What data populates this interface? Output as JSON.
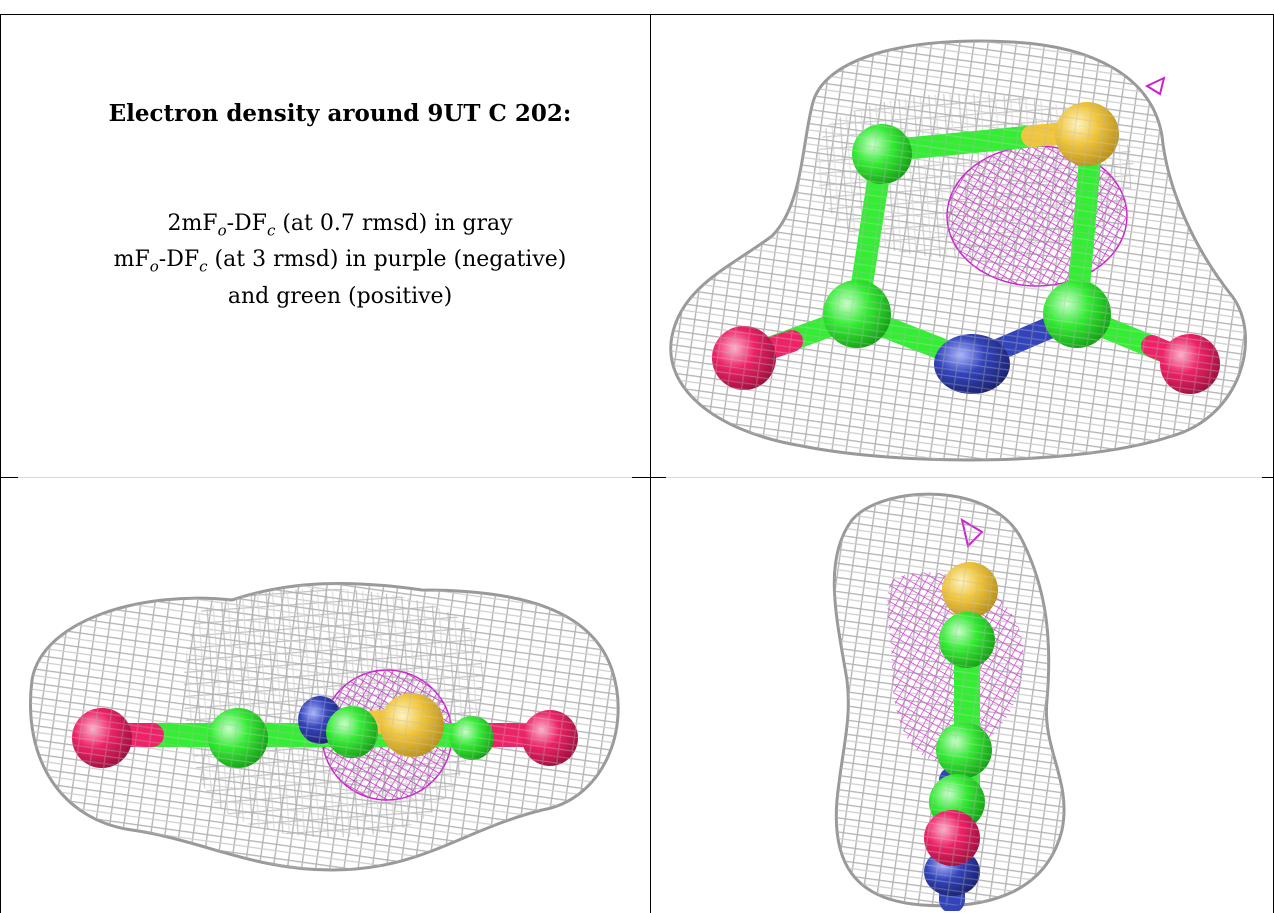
{
  "caption": {
    "title": "Electron density around 9UT C 202:",
    "line1": {
      "pre": "2mF",
      "sub1": "o",
      "mid": "-DF",
      "sub2": "c",
      "post": " (at 0.7 rmsd) in gray"
    },
    "line2": {
      "pre": "mF",
      "sub1": "o",
      "mid": "-DF",
      "sub2": "c",
      "post": " (at 3 rmsd) in purple (negative)"
    },
    "line3": "and green (positive)"
  },
  "panels": [
    {
      "name": "top-right",
      "view": "front"
    },
    {
      "name": "bottom-left",
      "view": "edge-on"
    },
    {
      "name": "bottom-right",
      "view": "side"
    }
  ],
  "colors": {
    "mesh": "#b8b8b8",
    "negative": "#cc22cc",
    "carbon": "#33ee33",
    "oxygen": "#ee2266",
    "nitrogen": "#3344bb",
    "sulfur": "#f2c63a"
  }
}
